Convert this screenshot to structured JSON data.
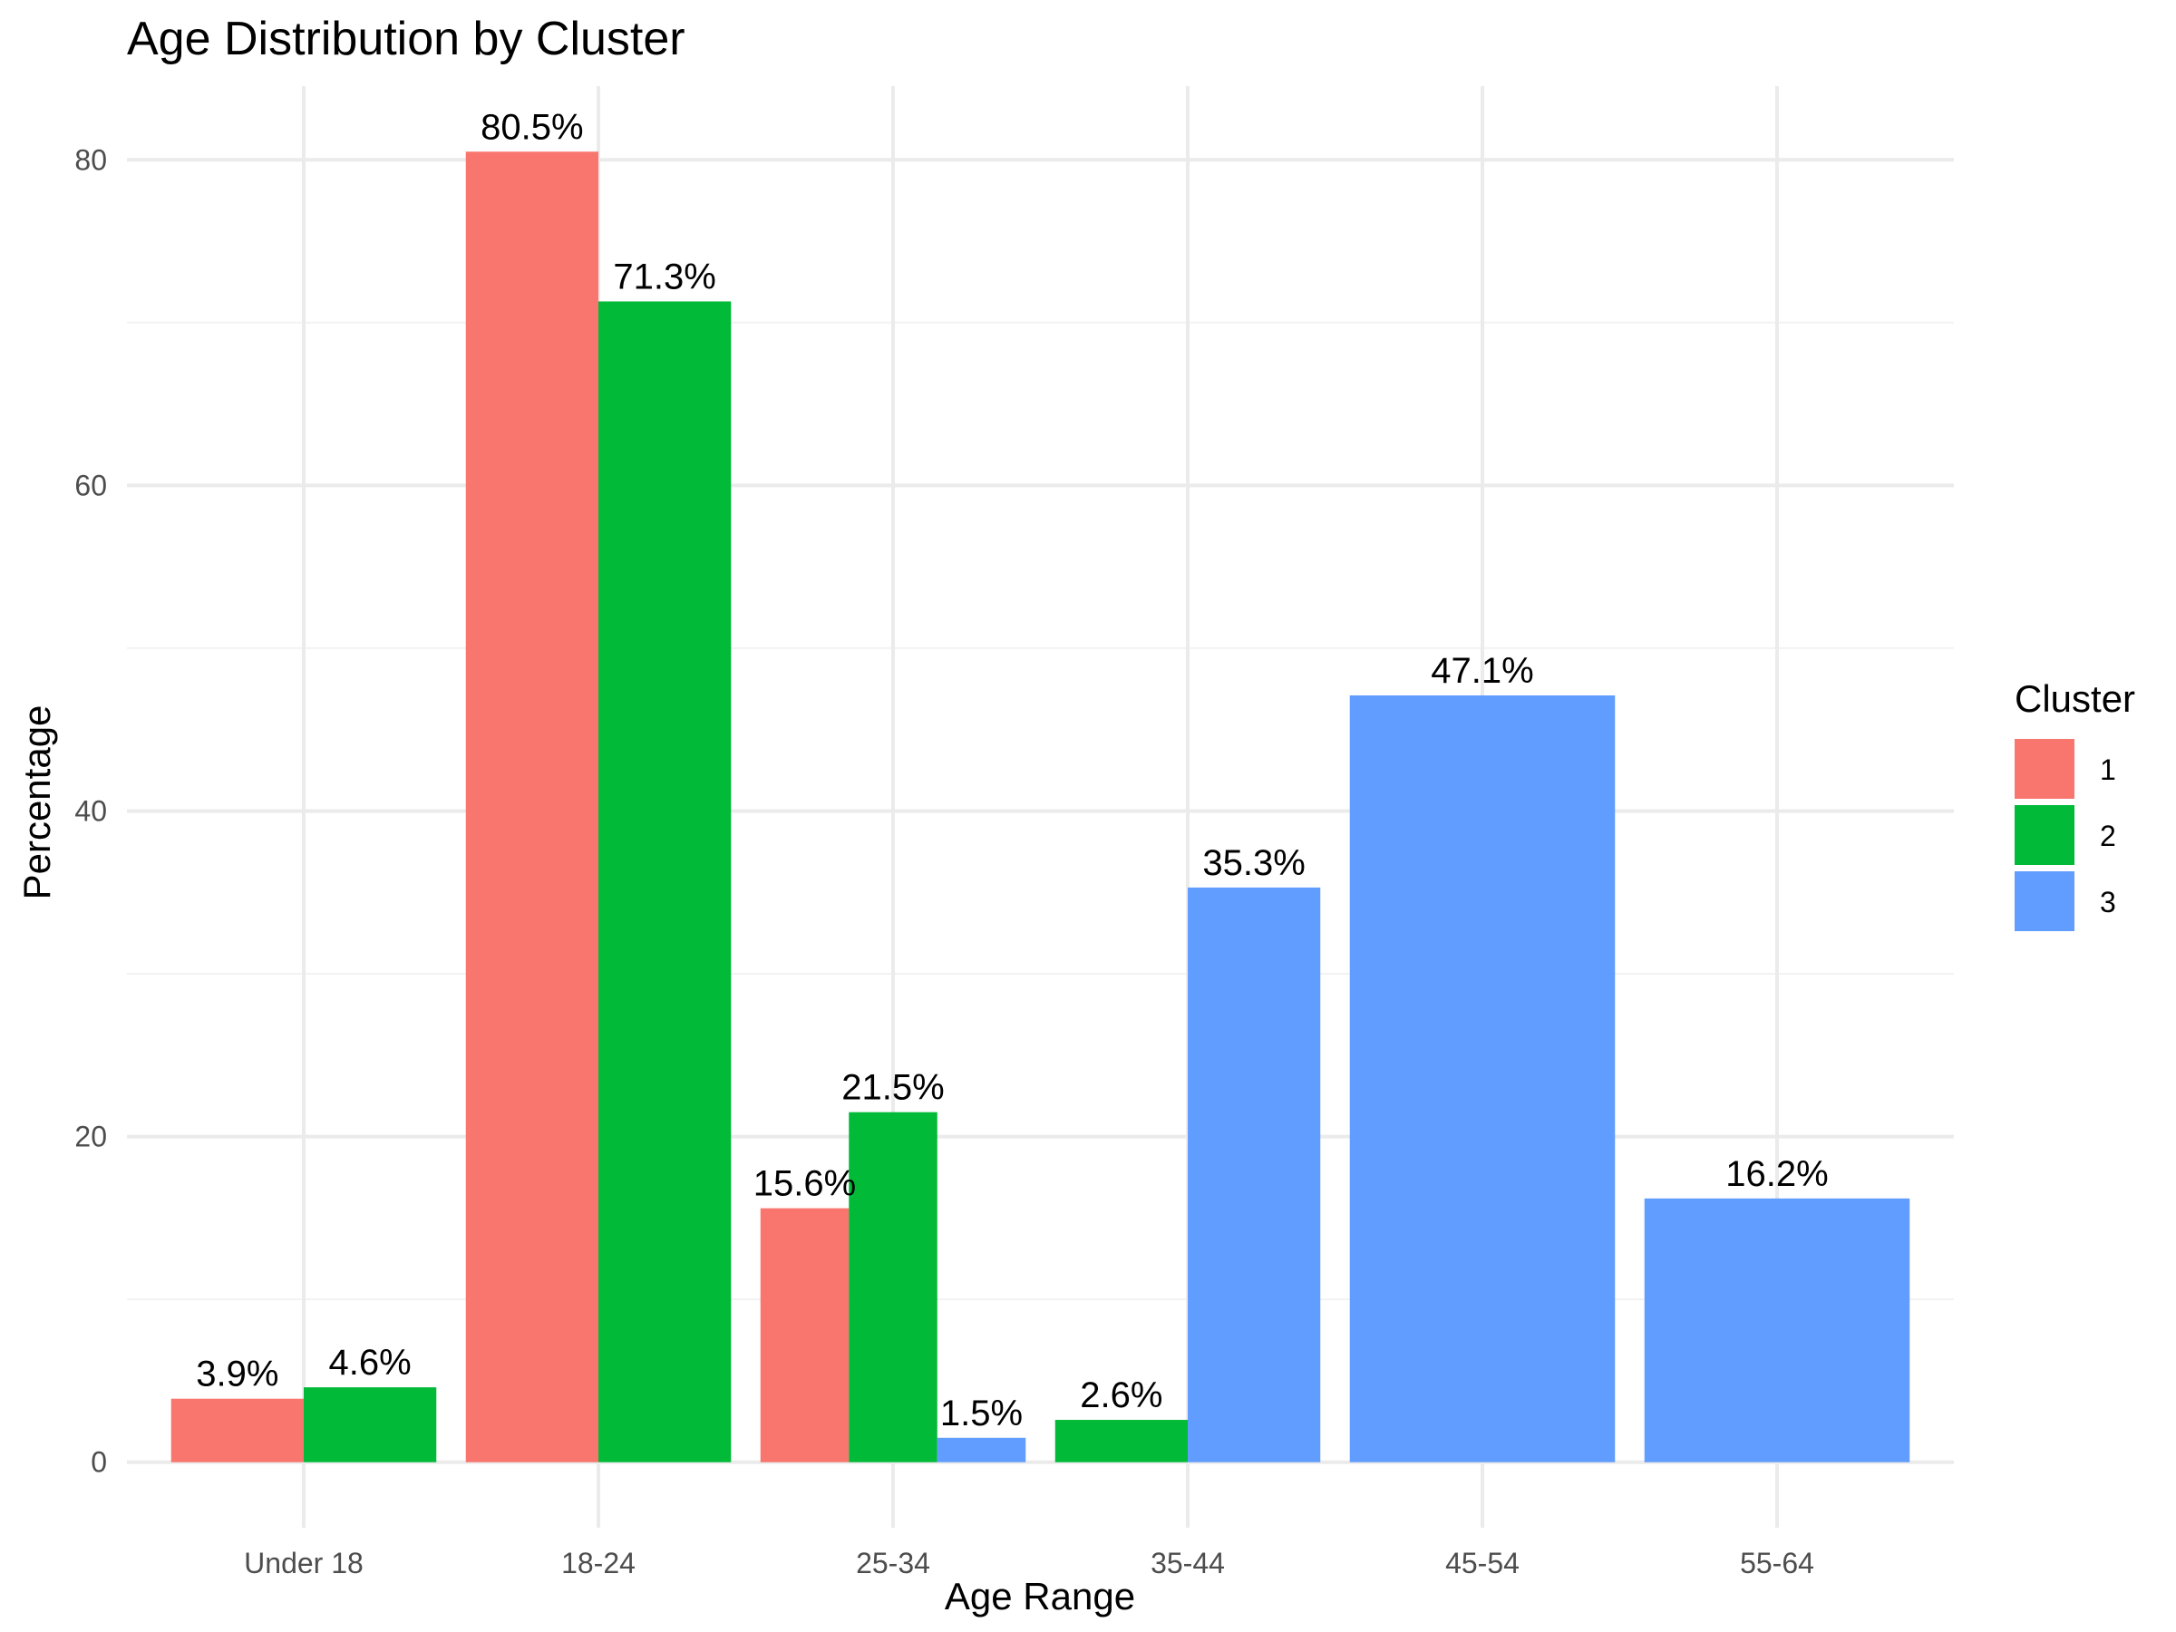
{
  "chart_data": {
    "type": "bar",
    "title": "Age Distribution by Cluster",
    "xlabel": "Age Range",
    "ylabel": "Percentage",
    "categories": [
      "Under 18",
      "18-24",
      "25-34",
      "35-44",
      "45-54",
      "55-64"
    ],
    "series": [
      {
        "name": "1",
        "color": "#F8766D",
        "values": [
          3.9,
          80.5,
          15.6,
          null,
          null,
          null
        ]
      },
      {
        "name": "2",
        "color": "#00BA38",
        "values": [
          4.6,
          71.3,
          21.5,
          2.6,
          null,
          null
        ]
      },
      {
        "name": "3",
        "color": "#619CFF",
        "values": [
          null,
          null,
          1.5,
          35.3,
          47.1,
          16.2
        ]
      }
    ],
    "data_labels": [
      [
        "3.9%",
        "80.5%",
        "15.6%",
        "",
        "",
        ""
      ],
      [
        "4.6%",
        "71.3%",
        "21.5%",
        "2.6%",
        "",
        ""
      ],
      [
        "",
        "",
        "1.5%",
        "35.3%",
        "47.1%",
        "16.2%"
      ]
    ],
    "ylim": [
      -4.025,
      84.525
    ],
    "yticks": [
      0,
      20,
      40,
      60,
      80
    ],
    "yticks_minor": [
      10,
      30,
      50,
      70
    ],
    "ytick_labels": [
      "0",
      "20",
      "40",
      "60",
      "80"
    ],
    "grid": true,
    "legend": {
      "title": "Cluster",
      "position": "right"
    }
  }
}
